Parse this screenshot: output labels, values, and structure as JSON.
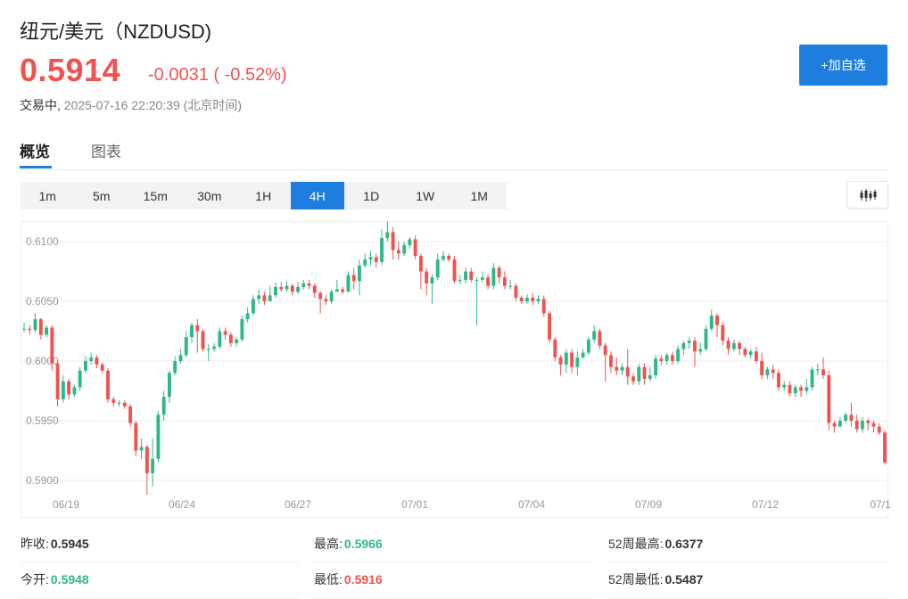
{
  "header": {
    "title": "纽元/美元（NZDUSD)",
    "price": "0.5914",
    "change": "-0.0031 ( -0.52%)",
    "trading_status": "交易中,",
    "timestamp": "2025-07-16 22:20:39 (北京时间)",
    "add_button": "+加自选"
  },
  "tabs": [
    "概览",
    "图表"
  ],
  "periods": [
    "1m",
    "5m",
    "15m",
    "30m",
    "1H",
    "4H",
    "1D",
    "1W",
    "1M"
  ],
  "active_period": "4H",
  "colors": {
    "up": "#2fb887",
    "down": "#f0524f",
    "accent": "#1e7ee0"
  },
  "icons": {
    "chart_type": "candlestick-icon"
  },
  "stats": {
    "prev_close_label": "昨收:",
    "prev_close": "0.5945",
    "open_label": "今开:",
    "open": "0.5948",
    "high_label": "最高:",
    "high": "0.5966",
    "low_label": "最低:",
    "low": "0.5916",
    "w52_high_label": "52周最高:",
    "w52_high": "0.6377",
    "w52_low_label": "52周最低:",
    "w52_low": "0.5487"
  },
  "chart_data": {
    "type": "candlestick",
    "y_ticks": [
      "0.6100",
      "0.6050",
      "0.6000",
      "0.5950",
      "0.5900"
    ],
    "x_ticks": [
      "06/19",
      "06/24",
      "06/27",
      "07/01",
      "07/04",
      "07/09",
      "07/12",
      "07/1"
    ],
    "ylim": [
      0.5885,
      0.6115
    ],
    "grid": true,
    "candles": [
      [
        0.6027,
        0.6027,
        0.6032,
        0.6024
      ],
      [
        0.6027,
        0.6026,
        0.603,
        0.6022
      ],
      [
        0.6026,
        0.6035,
        0.604,
        0.6024
      ],
      [
        0.6035,
        0.6022,
        0.6036,
        0.6018
      ],
      [
        0.6022,
        0.6028,
        0.603,
        0.602
      ],
      [
        0.6028,
        0.5998,
        0.603,
        0.5992
      ],
      [
        0.5998,
        0.5968,
        0.6,
        0.5962
      ],
      [
        0.5968,
        0.5983,
        0.5988,
        0.5965
      ],
      [
        0.5983,
        0.5972,
        0.5985,
        0.5968
      ],
      [
        0.5972,
        0.5978,
        0.598,
        0.597
      ],
      [
        0.5978,
        0.5992,
        0.5995,
        0.5975
      ],
      [
        0.5992,
        0.6,
        0.6004,
        0.599
      ],
      [
        0.6,
        0.6003,
        0.6007,
        0.5997
      ],
      [
        0.6003,
        0.5997,
        0.6005,
        0.5994
      ],
      [
        0.5997,
        0.5992,
        0.5999,
        0.599
      ],
      [
        0.5992,
        0.5968,
        0.5994,
        0.5965
      ],
      [
        0.5968,
        0.5965,
        0.597,
        0.5962
      ],
      [
        0.5965,
        0.5965,
        0.5967,
        0.5962
      ],
      [
        0.5965,
        0.5962,
        0.5967,
        0.596
      ],
      [
        0.5962,
        0.5948,
        0.5964,
        0.5945
      ],
      [
        0.5948,
        0.5925,
        0.595,
        0.592
      ],
      [
        0.5925,
        0.5928,
        0.5935,
        0.5918
      ],
      [
        0.5928,
        0.5906,
        0.593,
        0.5888
      ],
      [
        0.5906,
        0.5918,
        0.5935,
        0.5895
      ],
      [
        0.5918,
        0.5955,
        0.5958,
        0.5915
      ],
      [
        0.5955,
        0.597,
        0.5975,
        0.595
      ],
      [
        0.597,
        0.599,
        0.5992,
        0.5965
      ],
      [
        0.599,
        0.6,
        0.6004,
        0.5988
      ],
      [
        0.6,
        0.6005,
        0.601,
        0.5998
      ],
      [
        0.6005,
        0.602,
        0.6025,
        0.6003
      ],
      [
        0.602,
        0.603,
        0.6032,
        0.6015
      ],
      [
        0.603,
        0.6025,
        0.6035,
        0.6007
      ],
      [
        0.6025,
        0.601,
        0.6027,
        0.6008
      ],
      [
        0.601,
        0.601,
        0.6014,
        0.6
      ],
      [
        0.601,
        0.6012,
        0.6015,
        0.6008
      ],
      [
        0.6012,
        0.6025,
        0.6028,
        0.601
      ],
      [
        0.6025,
        0.6022,
        0.6028,
        0.6018
      ],
      [
        0.6022,
        0.6015,
        0.6024,
        0.6012
      ],
      [
        0.6015,
        0.6018,
        0.602,
        0.6012
      ],
      [
        0.6018,
        0.6035,
        0.6038,
        0.6016
      ],
      [
        0.6035,
        0.604,
        0.6045,
        0.6032
      ],
      [
        0.604,
        0.6052,
        0.6055,
        0.6038
      ],
      [
        0.6052,
        0.6055,
        0.606,
        0.6048
      ],
      [
        0.6055,
        0.605,
        0.6058,
        0.6047
      ],
      [
        0.605,
        0.6055,
        0.6063,
        0.6052
      ],
      [
        0.6055,
        0.6062,
        0.6066,
        0.6053
      ],
      [
        0.6062,
        0.606,
        0.6066,
        0.6058
      ],
      [
        0.606,
        0.6063,
        0.6067,
        0.6058
      ],
      [
        0.6063,
        0.6058,
        0.6065,
        0.6055
      ],
      [
        0.6058,
        0.6062,
        0.6066,
        0.6056
      ],
      [
        0.6062,
        0.6065,
        0.6068,
        0.606
      ],
      [
        0.6065,
        0.6063,
        0.6068,
        0.606
      ],
      [
        0.6063,
        0.6057,
        0.6065,
        0.6053
      ],
      [
        0.6057,
        0.6052,
        0.6059,
        0.604
      ],
      [
        0.6052,
        0.605,
        0.6055,
        0.6047
      ],
      [
        0.605,
        0.6058,
        0.606,
        0.6048
      ],
      [
        0.6058,
        0.606,
        0.6068,
        0.6058
      ],
      [
        0.606,
        0.6058,
        0.6062,
        0.6056
      ],
      [
        0.6058,
        0.6072,
        0.6075,
        0.6058
      ],
      [
        0.6072,
        0.6067,
        0.6078,
        0.606
      ],
      [
        0.6067,
        0.608,
        0.6085,
        0.6055
      ],
      [
        0.608,
        0.6085,
        0.609,
        0.6078
      ],
      [
        0.6085,
        0.6087,
        0.6092,
        0.608
      ],
      [
        0.6087,
        0.6083,
        0.609,
        0.6078
      ],
      [
        0.6083,
        0.6103,
        0.611,
        0.608
      ],
      [
        0.6103,
        0.6108,
        0.6117,
        0.61
      ],
      [
        0.6108,
        0.6093,
        0.6112,
        0.6085
      ],
      [
        0.6093,
        0.609,
        0.61,
        0.6085
      ],
      [
        0.609,
        0.6097,
        0.61,
        0.6088
      ],
      [
        0.6097,
        0.6102,
        0.6104,
        0.6094
      ],
      [
        0.6102,
        0.6088,
        0.6105,
        0.6085
      ],
      [
        0.6088,
        0.6075,
        0.609,
        0.606
      ],
      [
        0.6075,
        0.6065,
        0.6078,
        0.6055
      ],
      [
        0.6065,
        0.607,
        0.6073,
        0.6048
      ],
      [
        0.607,
        0.6085,
        0.609,
        0.6068
      ],
      [
        0.6085,
        0.6088,
        0.6092,
        0.6083
      ],
      [
        0.6088,
        0.6085,
        0.609,
        0.6083
      ],
      [
        0.6085,
        0.6067,
        0.6088,
        0.6065
      ],
      [
        0.6067,
        0.6068,
        0.6072,
        0.6064
      ],
      [
        0.6068,
        0.6075,
        0.6078,
        0.6065
      ],
      [
        0.6075,
        0.6068,
        0.6078,
        0.6066
      ],
      [
        0.6068,
        0.6068,
        0.607,
        0.603
      ],
      [
        0.6068,
        0.607,
        0.6075,
        0.6066
      ],
      [
        0.607,
        0.6063,
        0.6073,
        0.606
      ],
      [
        0.6063,
        0.6078,
        0.6082,
        0.606
      ],
      [
        0.6078,
        0.607,
        0.608,
        0.6065
      ],
      [
        0.607,
        0.6063,
        0.6075,
        0.606
      ],
      [
        0.6063,
        0.6063,
        0.6068,
        0.606
      ],
      [
        0.6063,
        0.6053,
        0.6065,
        0.605
      ],
      [
        0.6053,
        0.605,
        0.6055,
        0.6048
      ],
      [
        0.605,
        0.6053,
        0.6056,
        0.6048
      ],
      [
        0.6053,
        0.605,
        0.6057,
        0.6047
      ],
      [
        0.605,
        0.6052,
        0.6055,
        0.6048
      ],
      [
        0.6052,
        0.604,
        0.6055,
        0.6037
      ],
      [
        0.604,
        0.6018,
        0.6042,
        0.6015
      ],
      [
        0.6018,
        0.6003,
        0.602,
        0.6
      ],
      [
        0.6003,
        0.5997,
        0.6005,
        0.5988
      ],
      [
        0.5997,
        0.6007,
        0.601,
        0.599
      ],
      [
        0.6007,
        0.5995,
        0.601,
        0.599
      ],
      [
        0.5995,
        0.6003,
        0.6008,
        0.5988
      ],
      [
        0.6003,
        0.6007,
        0.601,
        0.6002
      ],
      [
        0.6007,
        0.6018,
        0.602,
        0.6005
      ],
      [
        0.6018,
        0.6025,
        0.603,
        0.6015
      ],
      [
        0.6025,
        0.6013,
        0.6027,
        0.601
      ],
      [
        0.6013,
        0.6005,
        0.6015,
        0.5983
      ],
      [
        0.6005,
        0.5995,
        0.6008,
        0.599
      ],
      [
        0.5995,
        0.5992,
        0.6003,
        0.5988
      ],
      [
        0.5992,
        0.5995,
        0.5998,
        0.5988
      ],
      [
        0.5995,
        0.5987,
        0.601,
        0.598
      ],
      [
        0.5987,
        0.5983,
        0.599,
        0.598
      ],
      [
        0.5983,
        0.5995,
        0.5998,
        0.598
      ],
      [
        0.5995,
        0.5985,
        0.5998,
        0.598
      ],
      [
        0.5985,
        0.5988,
        0.5995,
        0.5983
      ],
      [
        0.5988,
        0.6002,
        0.6005,
        0.5985
      ],
      [
        0.6002,
        0.6,
        0.6005,
        0.5997
      ],
      [
        0.6,
        0.6005,
        0.6007,
        0.5997
      ],
      [
        0.6005,
        0.6,
        0.6008,
        0.5997
      ],
      [
        0.6,
        0.601,
        0.6013,
        0.5998
      ],
      [
        0.601,
        0.6015,
        0.6017,
        0.6005
      ],
      [
        0.6015,
        0.6017,
        0.602,
        0.601
      ],
      [
        0.6017,
        0.6008,
        0.602,
        0.5995
      ],
      [
        0.6008,
        0.601,
        0.6015,
        0.6005
      ],
      [
        0.601,
        0.6027,
        0.603,
        0.6008
      ],
      [
        0.6027,
        0.6038,
        0.6043,
        0.6025
      ],
      [
        0.6038,
        0.603,
        0.604,
        0.602
      ],
      [
        0.603,
        0.6017,
        0.6033,
        0.6013
      ],
      [
        0.6017,
        0.601,
        0.602,
        0.6005
      ],
      [
        0.601,
        0.6015,
        0.6018,
        0.6008
      ],
      [
        0.6015,
        0.601,
        0.6017,
        0.6005
      ],
      [
        0.601,
        0.6005,
        0.6012,
        0.6003
      ],
      [
        0.6005,
        0.6008,
        0.601,
        0.6002
      ],
      [
        0.6008,
        0.6,
        0.6012,
        0.5998
      ],
      [
        0.6,
        0.5988,
        0.6007,
        0.5985
      ],
      [
        0.5988,
        0.5993,
        0.5995,
        0.5985
      ],
      [
        0.5993,
        0.599,
        0.5997,
        0.5985
      ],
      [
        0.599,
        0.5978,
        0.5993,
        0.5975
      ],
      [
        0.5978,
        0.598,
        0.5983,
        0.5975
      ],
      [
        0.598,
        0.5973,
        0.5983,
        0.597
      ],
      [
        0.5973,
        0.5978,
        0.598,
        0.597
      ],
      [
        0.5978,
        0.5975,
        0.598,
        0.597
      ],
      [
        0.5975,
        0.5978,
        0.5985,
        0.5972
      ],
      [
        0.5978,
        0.5993,
        0.5995,
        0.5975
      ],
      [
        0.5993,
        0.5993,
        0.5998,
        0.5988
      ],
      [
        0.5993,
        0.5988,
        0.6003,
        0.5985
      ],
      [
        0.5988,
        0.5948,
        0.5992,
        0.5942
      ],
      [
        0.5948,
        0.5945,
        0.595,
        0.594
      ],
      [
        0.5945,
        0.595,
        0.5953,
        0.5945
      ],
      [
        0.595,
        0.5955,
        0.5957,
        0.5948
      ],
      [
        0.5955,
        0.595,
        0.5965,
        0.5945
      ],
      [
        0.595,
        0.5943,
        0.5955,
        0.594
      ],
      [
        0.5943,
        0.595,
        0.5953,
        0.594
      ],
      [
        0.595,
        0.5948,
        0.5952,
        0.5942
      ],
      [
        0.5948,
        0.5945,
        0.595,
        0.594
      ],
      [
        0.5945,
        0.594,
        0.5948,
        0.5938
      ],
      [
        0.594,
        0.5915,
        0.5942,
        0.5913
      ]
    ]
  }
}
